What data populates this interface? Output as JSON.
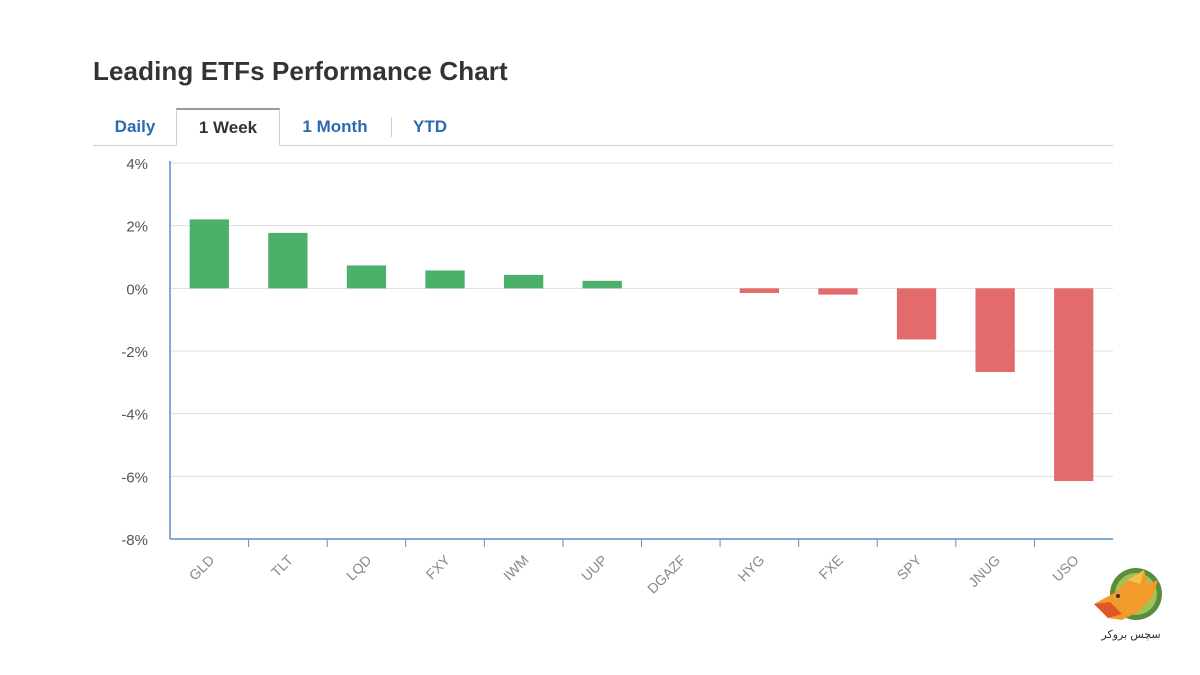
{
  "title": "Leading ETFs Performance Chart",
  "tabs": [
    {
      "label": "Daily",
      "active": false
    },
    {
      "label": "1 Week",
      "active": true
    },
    {
      "label": "1 Month",
      "active": false
    },
    {
      "label": "YTD",
      "active": false
    }
  ],
  "colors": {
    "positive": "#4caf6a",
    "negative": "#e46b6b",
    "axis": "#5b8fc7",
    "grid": "#dddddd",
    "tick_text": "#555555",
    "cat_text": "#888888"
  },
  "chart_data": {
    "type": "bar",
    "title": "Leading ETFs Performance Chart",
    "xlabel": "",
    "ylabel": "",
    "categories": [
      "GLD",
      "TLT",
      "LQD",
      "FXY",
      "IWM",
      "UUP",
      "DGAZF",
      "HYG",
      "FXE",
      "SPY",
      "JNUG",
      "USO"
    ],
    "values": [
      2.2,
      1.77,
      0.73,
      0.57,
      0.43,
      0.24,
      0.0,
      -0.15,
      -0.2,
      -1.63,
      -2.67,
      -6.15
    ],
    "ylim": [
      -8,
      4
    ],
    "yticks": [
      4,
      2,
      0,
      -2,
      -4,
      -6,
      -8
    ],
    "ytick_labels": [
      "4%",
      "2%",
      "0%",
      "-2%",
      "-4%",
      "-6%",
      "-8%"
    ],
    "grid": true,
    "legend": "none"
  },
  "watermark": {
    "text": "سچس بروکر",
    "icon": "fox-logo-icon"
  }
}
